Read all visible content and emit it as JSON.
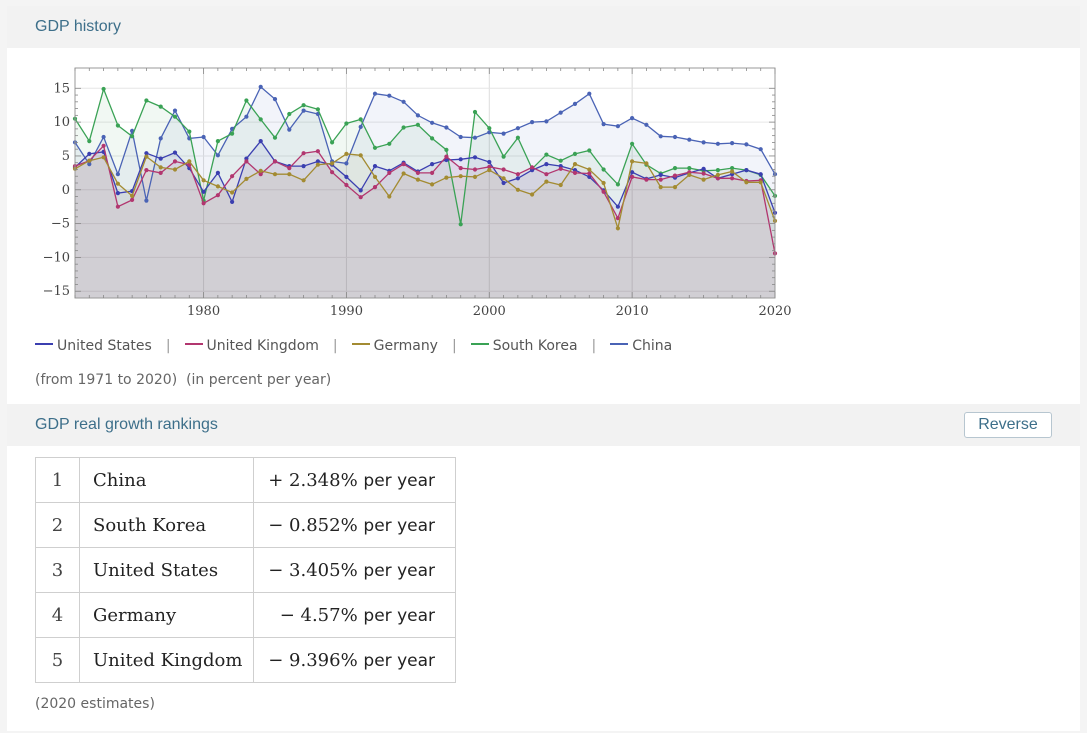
{
  "gdp_history": {
    "title": "GDP history",
    "legend_separator": "|",
    "legend": [
      {
        "label": "United States",
        "color": "#3b3fb0"
      },
      {
        "label": "United Kingdom",
        "color": "#b2366f"
      },
      {
        "label": "Germany",
        "color": "#a38b32"
      },
      {
        "label": "South Korea",
        "color": "#3aa255"
      },
      {
        "label": "China",
        "color": "#4a63b5"
      }
    ],
    "range_note": "(from 1971 to 2020)",
    "unit_note": "(in percent per year)"
  },
  "chart_data": {
    "type": "line",
    "xlim": [
      1971,
      2020
    ],
    "ylim": [
      -16,
      18
    ],
    "x_ticks": [
      "1980",
      "1990",
      "2000",
      "2010",
      "2020"
    ],
    "y_ticks": [
      "15",
      "10",
      "5",
      "0",
      "−5",
      "−10",
      "−15"
    ],
    "x": [
      1971,
      1972,
      1973,
      1974,
      1975,
      1976,
      1977,
      1978,
      1979,
      1980,
      1981,
      1982,
      1983,
      1984,
      1985,
      1986,
      1987,
      1988,
      1989,
      1990,
      1991,
      1992,
      1993,
      1994,
      1995,
      1996,
      1997,
      1998,
      1999,
      2000,
      2001,
      2002,
      2003,
      2004,
      2005,
      2006,
      2007,
      2008,
      2009,
      2010,
      2011,
      2012,
      2013,
      2014,
      2015,
      2016,
      2017,
      2018,
      2019,
      2020
    ],
    "series": [
      {
        "name": "China",
        "color": "#4a63b5",
        "values": [
          7.0,
          3.8,
          7.8,
          2.3,
          8.7,
          -1.6,
          7.6,
          11.7,
          7.6,
          7.8,
          5.1,
          9.0,
          10.8,
          15.2,
          13.4,
          8.9,
          11.7,
          11.2,
          4.2,
          3.9,
          9.3,
          14.2,
          13.9,
          13.0,
          11.0,
          9.9,
          9.2,
          7.8,
          7.7,
          8.5,
          8.3,
          9.1,
          10.0,
          10.1,
          11.4,
          12.7,
          14.2,
          9.7,
          9.4,
          10.6,
          9.6,
          7.9,
          7.8,
          7.4,
          7.0,
          6.8,
          6.9,
          6.7,
          6.0,
          2.3
        ]
      },
      {
        "name": "South Korea",
        "color": "#3aa255",
        "values": [
          10.5,
          7.2,
          14.9,
          9.5,
          7.9,
          13.2,
          12.3,
          10.8,
          8.6,
          -1.6,
          7.2,
          8.3,
          13.2,
          10.4,
          7.7,
          11.2,
          12.5,
          11.9,
          7.0,
          9.8,
          10.4,
          6.2,
          6.8,
          9.2,
          9.6,
          7.6,
          5.9,
          -5.1,
          11.5,
          9.1,
          4.9,
          7.7,
          3.1,
          5.2,
          4.3,
          5.3,
          5.8,
          3.0,
          0.8,
          6.8,
          3.7,
          2.4,
          3.2,
          3.2,
          2.8,
          2.9,
          3.2,
          2.9,
          2.2,
          -0.9
        ]
      },
      {
        "name": "United States",
        "color": "#3b3fb0",
        "values": [
          3.3,
          5.3,
          5.6,
          -0.5,
          -0.2,
          5.4,
          4.6,
          5.5,
          3.2,
          -0.3,
          2.5,
          -1.8,
          4.6,
          7.2,
          4.2,
          3.5,
          3.5,
          4.2,
          3.7,
          1.9,
          -0.1,
          3.5,
          2.8,
          4.0,
          2.7,
          3.8,
          4.4,
          4.5,
          4.8,
          4.1,
          1.0,
          1.7,
          2.9,
          3.8,
          3.5,
          2.9,
          1.9,
          -0.1,
          -2.5,
          2.6,
          1.6,
          2.2,
          1.8,
          2.5,
          3.1,
          1.7,
          2.3,
          2.9,
          2.3,
          -3.4
        ]
      },
      {
        "name": "United Kingdom",
        "color": "#b2366f",
        "values": [
          3.5,
          4.3,
          6.5,
          -2.5,
          -1.5,
          2.9,
          2.5,
          4.2,
          3.7,
          -2.0,
          -0.8,
          2.0,
          4.2,
          2.3,
          4.2,
          3.2,
          5.4,
          5.7,
          2.6,
          0.7,
          -1.1,
          0.4,
          2.5,
          3.8,
          2.5,
          2.5,
          4.9,
          3.2,
          3.0,
          3.4,
          3.0,
          2.3,
          3.3,
          2.3,
          3.1,
          2.5,
          2.4,
          -0.3,
          -4.2,
          1.9,
          1.5,
          1.5,
          2.1,
          2.6,
          2.4,
          1.7,
          1.7,
          1.3,
          1.4,
          -9.4
        ]
      },
      {
        "name": "Germany",
        "color": "#a38b32",
        "values": [
          3.1,
          4.3,
          4.8,
          0.9,
          -0.9,
          4.9,
          3.3,
          3.0,
          4.2,
          1.4,
          0.5,
          -0.4,
          1.6,
          2.8,
          2.3,
          2.3,
          1.4,
          3.7,
          3.9,
          5.3,
          5.1,
          1.9,
          -1.0,
          2.4,
          1.5,
          0.8,
          1.8,
          2.0,
          1.9,
          2.9,
          1.7,
          0.0,
          -0.7,
          1.2,
          0.7,
          3.8,
          3.0,
          1.0,
          -5.7,
          4.2,
          3.9,
          0.4,
          0.4,
          2.2,
          1.5,
          2.2,
          2.7,
          1.1,
          1.1,
          -4.6
        ]
      }
    ]
  },
  "rankings": {
    "title": "GDP real growth rankings",
    "reverse_label": "Reverse",
    "unit": "per year",
    "rows": [
      {
        "rank": "1",
        "country": "China",
        "value": "+ 2.348%"
      },
      {
        "rank": "2",
        "country": "South Korea",
        "value": "− 0.852%"
      },
      {
        "rank": "3",
        "country": "United States",
        "value": "− 3.405%"
      },
      {
        "rank": "4",
        "country": "Germany",
        "value": "− 4.57%"
      },
      {
        "rank": "5",
        "country": "United Kingdom",
        "value": "− 9.396%"
      }
    ],
    "note": "(2020 estimates)"
  }
}
